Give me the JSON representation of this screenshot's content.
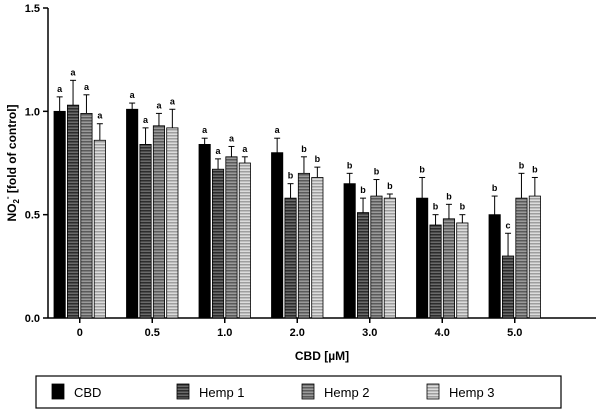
{
  "chart_data": {
    "type": "bar",
    "categories": [
      "0",
      "0.5",
      "1.0",
      "2.0",
      "3.0",
      "4.0",
      "5.0"
    ],
    "xlabel": "CBD [µM]",
    "ylabel": "NO2- [fold of control]",
    "ylabel_parts": {
      "main": "NO",
      "sub": "2",
      "sup": "-",
      "rest": " [fold of control]"
    },
    "ylim": [
      0.0,
      1.5
    ],
    "yticks": [
      "0.0",
      "0.5",
      "1.0",
      "1.5"
    ],
    "grid": false,
    "legend_position": "bottom",
    "series": [
      {
        "name": "CBD",
        "fill": "#000000",
        "pattern": "solid",
        "values": [
          1.0,
          1.01,
          0.84,
          0.8,
          0.65,
          0.58,
          0.5
        ],
        "errors": [
          0.07,
          0.03,
          0.03,
          0.07,
          0.05,
          0.1,
          0.09
        ],
        "letters": [
          "a",
          "a",
          "a",
          "a",
          "b",
          "b",
          "b"
        ]
      },
      {
        "name": "Hemp 1",
        "fill": "#3a3a3a",
        "pattern": "dark-stripes",
        "values": [
          1.03,
          0.84,
          0.72,
          0.58,
          0.51,
          0.45,
          0.3
        ],
        "errors": [
          0.12,
          0.08,
          0.05,
          0.07,
          0.07,
          0.05,
          0.11
        ],
        "letters": [
          "a",
          "a",
          "a",
          "b",
          "b",
          "b",
          "c"
        ]
      },
      {
        "name": "Hemp 2",
        "fill": "#6e6e6e",
        "pattern": "medium-stripes",
        "values": [
          0.99,
          0.93,
          0.78,
          0.7,
          0.59,
          0.48,
          0.58
        ],
        "errors": [
          0.09,
          0.06,
          0.05,
          0.08,
          0.08,
          0.07,
          0.12
        ],
        "letters": [
          "a",
          "a",
          "a",
          "b",
          "b",
          "b",
          "b"
        ]
      },
      {
        "name": "Hemp 3",
        "fill": "#b5b5b5",
        "pattern": "light-stripes",
        "values": [
          0.86,
          0.92,
          0.75,
          0.68,
          0.58,
          0.46,
          0.59
        ],
        "errors": [
          0.08,
          0.09,
          0.03,
          0.05,
          0.02,
          0.04,
          0.09
        ],
        "letters": [
          "a",
          "a",
          "a",
          "b",
          "b",
          "b",
          "b"
        ]
      }
    ]
  }
}
